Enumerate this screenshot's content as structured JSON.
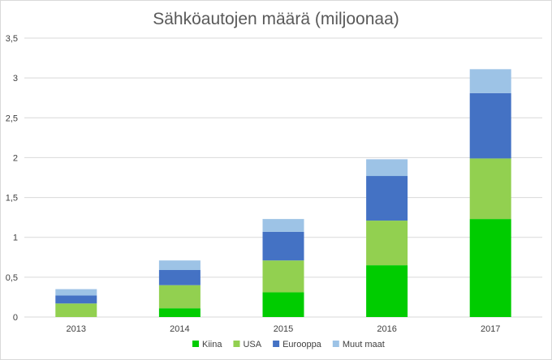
{
  "chart_data": {
    "type": "bar",
    "stacked": true,
    "title": "Sähköautojen määrä (miljoonaa)",
    "xlabel": "",
    "ylabel": "",
    "categories": [
      "2013",
      "2014",
      "2015",
      "2016",
      "2017"
    ],
    "ylim": [
      0,
      3.5
    ],
    "yticks": [
      0,
      0.5,
      1,
      1.5,
      2,
      2.5,
      3,
      3.5
    ],
    "ytick_labels": [
      "0",
      "0,5",
      "1",
      "1,5",
      "2",
      "2,5",
      "3",
      "3,5"
    ],
    "grid": true,
    "legend_position": "bottom",
    "series": [
      {
        "name": "Kiina",
        "color": "#00cc00",
        "values": [
          0.0,
          0.11,
          0.31,
          0.65,
          1.23
        ]
      },
      {
        "name": "USA",
        "color": "#92d050",
        "values": [
          0.17,
          0.29,
          0.4,
          0.56,
          0.76
        ]
      },
      {
        "name": "Eurooppa",
        "color": "#4472c4",
        "values": [
          0.1,
          0.19,
          0.36,
          0.56,
          0.82
        ]
      },
      {
        "name": "Muut maat",
        "color": "#9dc3e6",
        "values": [
          0.08,
          0.12,
          0.16,
          0.21,
          0.3
        ]
      }
    ]
  }
}
